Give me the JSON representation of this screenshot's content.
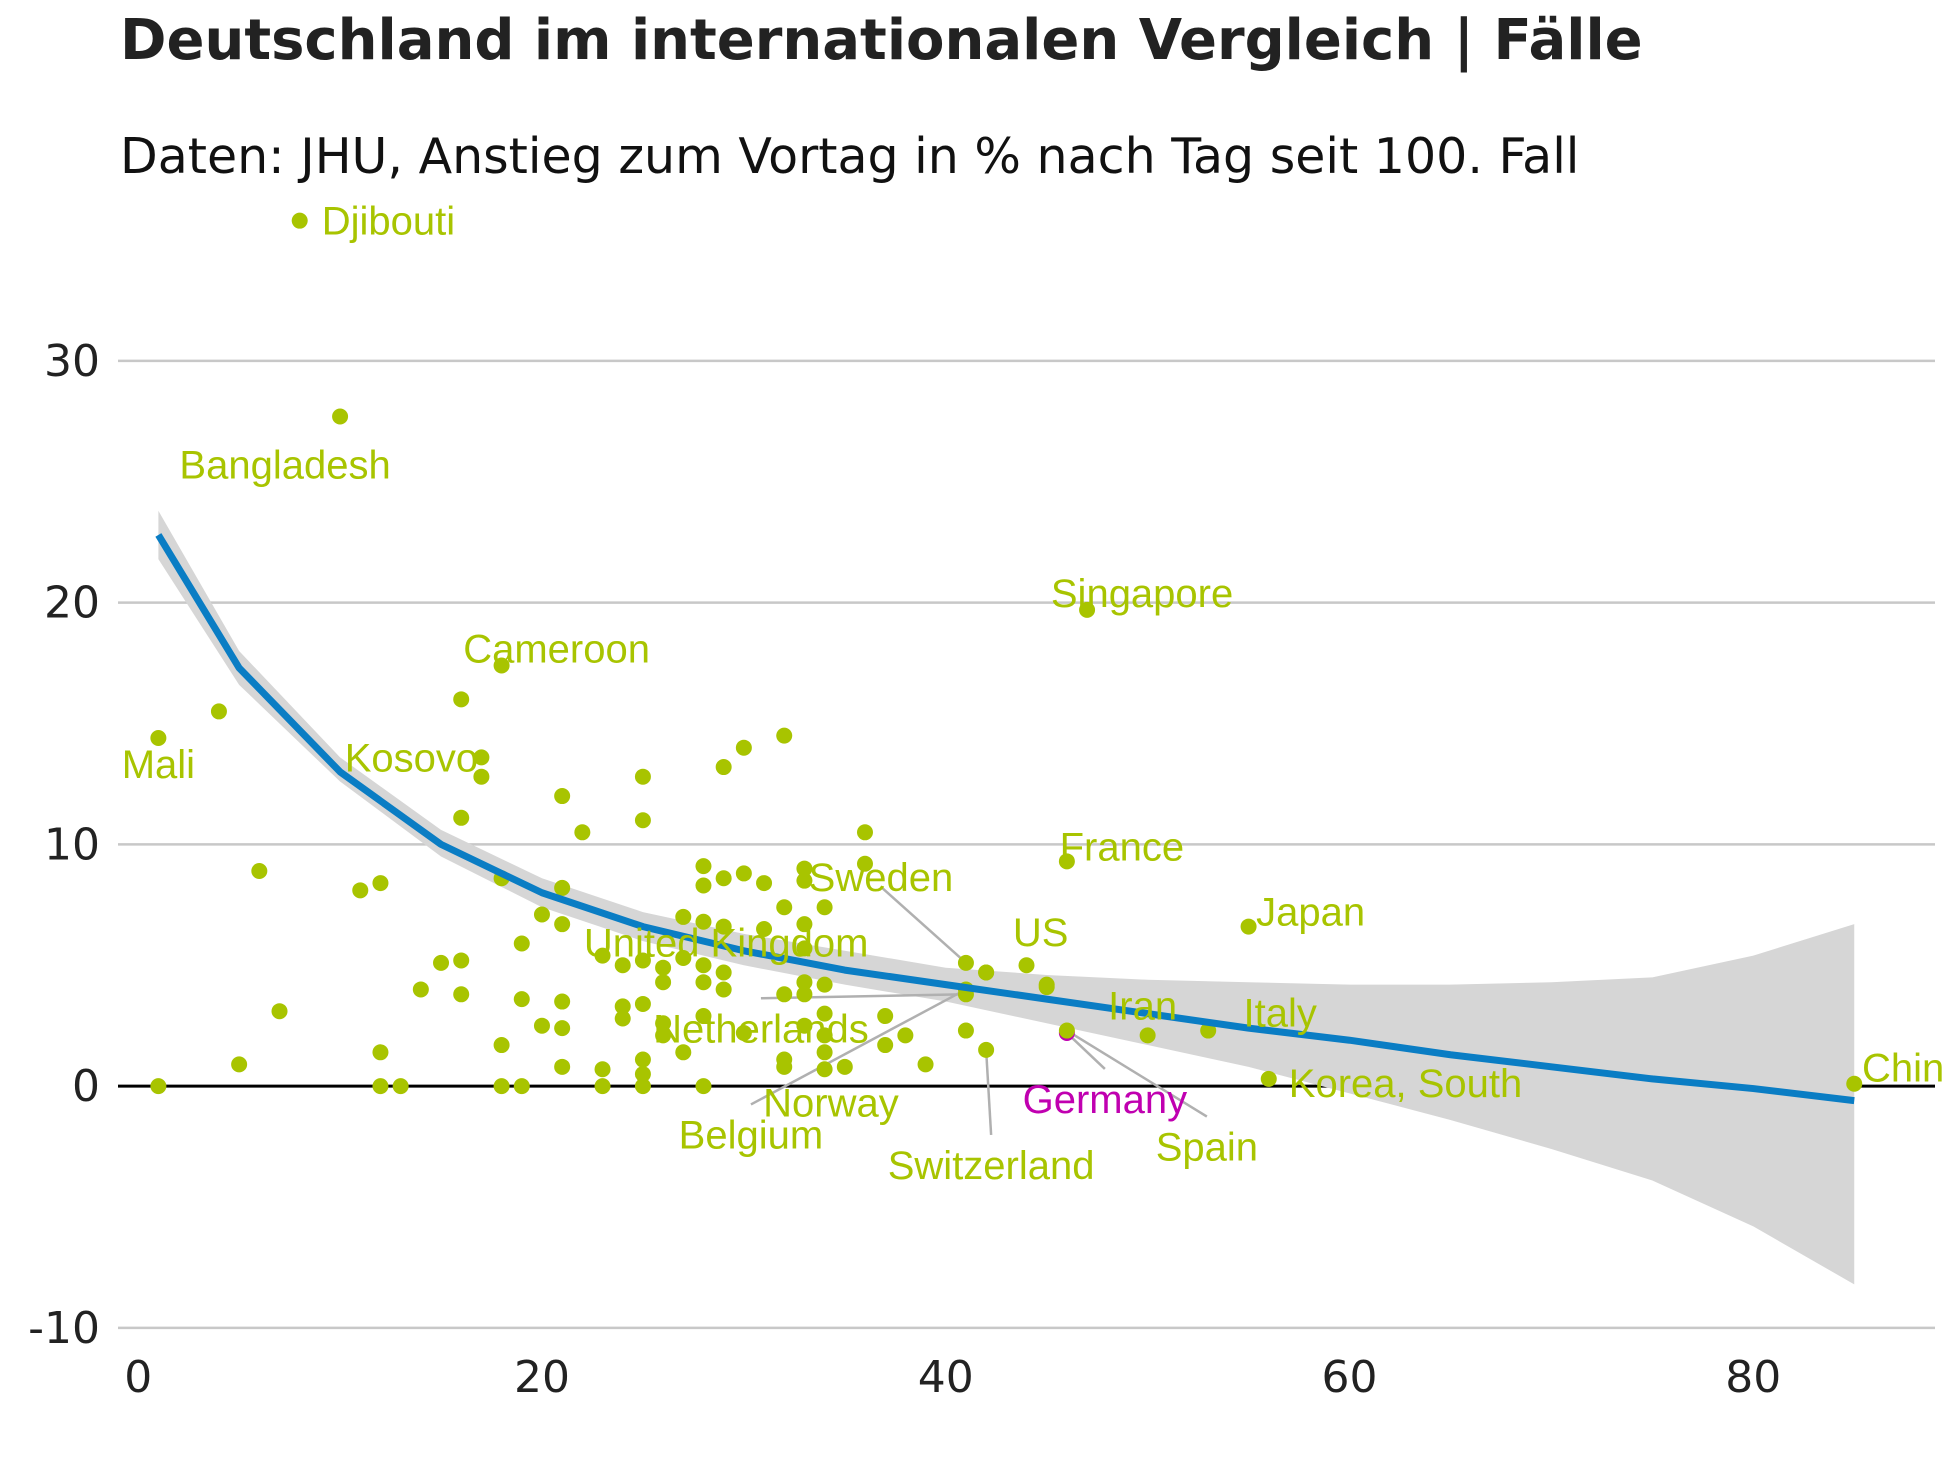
{
  "chart_data": {
    "type": "scatter",
    "title": "Deutschland im internationalen Vergleich | Fälle",
    "subtitle": "Daten: JHU, Anstieg zum Vortag in % nach Tag seit 100. Fall",
    "xlabel": "",
    "ylabel": "",
    "xlim": [
      -1,
      89
    ],
    "ylim": [
      -10.5,
      35
    ],
    "x_ticks": [
      0,
      20,
      40,
      60,
      80
    ],
    "y_ticks": [
      -10,
      0,
      10,
      20,
      30
    ],
    "grid": "horizontal",
    "legend": "none",
    "colors": {
      "points": "#a8c400",
      "highlight": "#c000b0",
      "trend": "#0a7dc4",
      "band": "#d6d6d6",
      "zero_line": "#000000",
      "grid": "#c8c8c8",
      "leader": "#b0b0b0"
    },
    "labeled_points": [
      {
        "name": "Djibouti",
        "x": 8,
        "y": 35.8
      },
      {
        "name": "Bangladesh",
        "x": 10,
        "y": 27.7
      },
      {
        "name": "Singapore",
        "x": 47,
        "y": 19.7
      },
      {
        "name": "Cameroon",
        "x": 18,
        "y": 17.4
      },
      {
        "name": "Mali",
        "x": 1,
        "y": 14.4
      },
      {
        "name": "Kosovo",
        "x": 17,
        "y": 13.6
      },
      {
        "name": "France",
        "x": 46,
        "y": 9.3
      },
      {
        "name": "Sweden",
        "x": 41,
        "y": 5.1
      },
      {
        "name": "Japan",
        "x": 55,
        "y": 6.6
      },
      {
        "name": "United Kingdom",
        "x": 42,
        "y": 4.7
      },
      {
        "name": "US",
        "x": 45,
        "y": 4.1
      },
      {
        "name": "Netherlands",
        "x": 41,
        "y": 3.8
      },
      {
        "name": "Iran",
        "x": 50,
        "y": 2.1
      },
      {
        "name": "Italy",
        "x": 53,
        "y": 2.3
      },
      {
        "name": "Norway",
        "x": 41,
        "y": 2.3
      },
      {
        "name": "Switzerland",
        "x": 42,
        "y": 1.5
      },
      {
        "name": "Germany",
        "x": 46,
        "y": 2.2
      },
      {
        "name": "Spain",
        "x": 46,
        "y": 2.3
      },
      {
        "name": "Belgium",
        "x": 41,
        "y": 4.0
      },
      {
        "name": "Korea, South",
        "x": 56,
        "y": 0.3
      },
      {
        "name": "China",
        "x": 85,
        "y": 0.1
      }
    ],
    "other_points": [
      [
        1,
        0
      ],
      [
        4,
        15.5
      ],
      [
        5,
        0.9
      ],
      [
        6,
        8.9
      ],
      [
        7,
        3.1
      ],
      [
        11,
        8.1
      ],
      [
        12,
        8.4
      ],
      [
        12,
        1.4
      ],
      [
        12,
        0
      ],
      [
        13,
        0
      ],
      [
        14,
        4.0
      ],
      [
        15,
        5.1
      ],
      [
        16,
        16.0
      ],
      [
        16,
        11.1
      ],
      [
        16,
        5.2
      ],
      [
        16,
        3.8
      ],
      [
        17,
        12.8
      ],
      [
        18,
        8.6
      ],
      [
        18,
        1.7
      ],
      [
        18,
        0
      ],
      [
        19,
        5.9
      ],
      [
        19,
        3.6
      ],
      [
        19,
        0
      ],
      [
        20,
        7.1
      ],
      [
        20,
        2.5
      ],
      [
        21,
        12.0
      ],
      [
        21,
        8.2
      ],
      [
        21,
        6.7
      ],
      [
        21,
        3.5
      ],
      [
        21,
        2.4
      ],
      [
        21,
        0.8
      ],
      [
        22,
        10.5
      ],
      [
        23,
        5.4
      ],
      [
        23,
        0.7
      ],
      [
        23,
        0
      ],
      [
        24,
        5.0
      ],
      [
        24,
        3.3
      ],
      [
        24,
        2.8
      ],
      [
        25,
        12.8
      ],
      [
        25,
        11.0
      ],
      [
        25,
        5.2
      ],
      [
        25,
        3.4
      ],
      [
        25,
        1.1
      ],
      [
        25,
        0.5
      ],
      [
        25,
        0
      ],
      [
        26,
        4.9
      ],
      [
        26,
        4.3
      ],
      [
        26,
        2.6
      ],
      [
        26,
        2.1
      ],
      [
        27,
        7.0
      ],
      [
        27,
        5.3
      ],
      [
        27,
        1.4
      ],
      [
        28,
        9.1
      ],
      [
        28,
        8.3
      ],
      [
        28,
        6.8
      ],
      [
        28,
        5.0
      ],
      [
        28,
        4.3
      ],
      [
        28,
        2.9
      ],
      [
        28,
        0
      ],
      [
        29,
        13.2
      ],
      [
        29,
        8.6
      ],
      [
        29,
        6.6
      ],
      [
        29,
        4.7
      ],
      [
        29,
        4.0
      ],
      [
        30,
        14.0
      ],
      [
        30,
        8.8
      ],
      [
        30,
        2.2
      ],
      [
        31,
        8.4
      ],
      [
        31,
        6.5
      ],
      [
        32,
        14.5
      ],
      [
        32,
        7.4
      ],
      [
        32,
        3.8
      ],
      [
        32,
        1.1
      ],
      [
        32,
        0.8
      ],
      [
        33,
        9.0
      ],
      [
        33,
        8.5
      ],
      [
        33,
        6.7
      ],
      [
        33,
        5.7
      ],
      [
        33,
        4.3
      ],
      [
        33,
        3.8
      ],
      [
        33,
        2.5
      ],
      [
        34,
        7.4
      ],
      [
        34,
        4.2
      ],
      [
        34,
        3.0
      ],
      [
        34,
        2.1
      ],
      [
        34,
        1.4
      ],
      [
        34,
        0.7
      ],
      [
        35,
        0.8
      ],
      [
        36,
        10.5
      ],
      [
        36,
        9.2
      ],
      [
        37,
        2.9
      ],
      [
        37,
        1.7
      ],
      [
        38,
        2.1
      ],
      [
        39,
        0.9
      ],
      [
        42,
        4.7
      ],
      [
        44,
        5.0
      ],
      [
        45,
        4.2
      ]
    ],
    "trend": {
      "x": [
        1,
        5,
        10,
        15,
        20,
        25,
        30,
        35,
        40,
        45,
        50,
        55,
        60,
        65,
        70,
        75,
        80,
        85
      ],
      "y": [
        22.8,
        17.3,
        13.0,
        10.0,
        8.0,
        6.6,
        5.6,
        4.8,
        4.2,
        3.6,
        3.0,
        2.4,
        1.9,
        1.3,
        0.8,
        0.3,
        -0.1,
        -0.6
      ],
      "lower": [
        21.8,
        16.6,
        12.6,
        9.5,
        7.4,
        6.0,
        5.0,
        4.2,
        3.5,
        2.6,
        1.7,
        0.8,
        -0.3,
        -1.4,
        -2.6,
        -3.9,
        -5.8,
        -8.2
      ],
      "upper": [
        23.8,
        18.0,
        13.6,
        10.6,
        8.6,
        7.2,
        6.3,
        5.6,
        4.9,
        4.6,
        4.4,
        4.3,
        4.2,
        4.2,
        4.3,
        4.5,
        5.4,
        6.7
      ]
    }
  }
}
